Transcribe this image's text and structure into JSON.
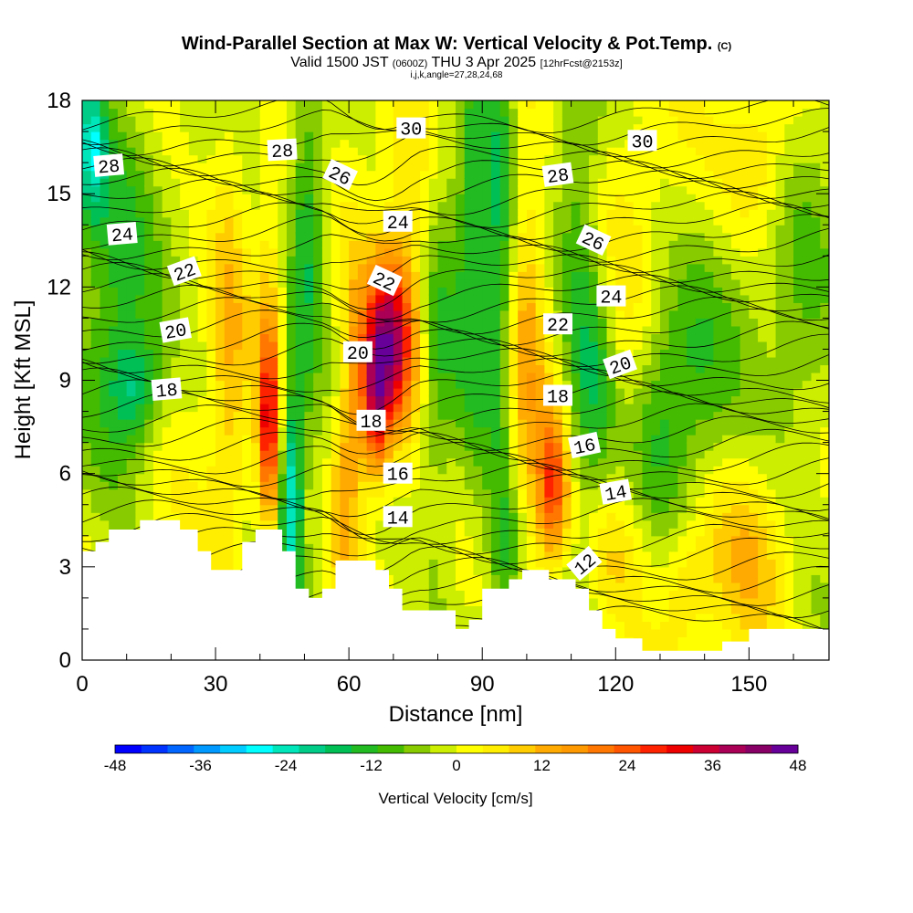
{
  "header": {
    "title": "Wind-Parallel Section at Max W: Vertical Velocity & Pot.Temp.",
    "copyright": "(C)",
    "valid_prefix": "Valid 1500 JST",
    "valid_zulu": "(0600Z)",
    "valid_date": "THU 3 Apr 2025",
    "forecast_tag": "[12hrFcst@2153z]",
    "indices": "i,j,k,angle=27,28,24,68"
  },
  "chart_data": {
    "type": "heatmap",
    "xlabel": "Distance [nm]",
    "ylabel": "Height [Kft MSL]",
    "xlim": [
      0,
      168
    ],
    "ylim": [
      0,
      18
    ],
    "x_ticks": [
      0,
      30,
      60,
      90,
      120,
      150
    ],
    "y_ticks": [
      0,
      3,
      6,
      9,
      12,
      15,
      18
    ],
    "colorbar": {
      "label": "Vertical Velocity [cm/s]",
      "ticks": [
        -48,
        -36,
        -24,
        -12,
        0,
        12,
        24,
        36,
        48
      ],
      "range": [
        -48,
        48
      ],
      "step": 4,
      "colors": [
        "#0000ff",
        "#0033ff",
        "#0066ff",
        "#0099ff",
        "#00ccff",
        "#00ffff",
        "#00e6bb",
        "#00cc88",
        "#00c055",
        "#22bb22",
        "#44bb00",
        "#88cc00",
        "#ccee00",
        "#ffff00",
        "#ffee00",
        "#ffcc00",
        "#ffaa00",
        "#ff9900",
        "#ff7700",
        "#ff5500",
        "#ff2200",
        "#ee0000",
        "#cc0033",
        "#aa0055",
        "#880066",
        "#660099"
      ]
    },
    "updraft_cores": [
      {
        "x": 69,
        "y": 10.2,
        "w": 48
      },
      {
        "x": 42,
        "y": 7.5,
        "w": 36
      },
      {
        "x": 106,
        "y": 5.5,
        "w": 30
      },
      {
        "x": 47,
        "y": 5.2,
        "w": -22
      },
      {
        "x": 12,
        "y": 8.7,
        "w": -18
      },
      {
        "x": 2,
        "y": 16.5,
        "w": -30
      }
    ],
    "terrain": [
      [
        0,
        3.5
      ],
      [
        3,
        3.5
      ],
      [
        3,
        3.8
      ],
      [
        6,
        3.8
      ],
      [
        6,
        4.2
      ],
      [
        13,
        4.2
      ],
      [
        13,
        4.5
      ],
      [
        22,
        4.5
      ],
      [
        22,
        4.2
      ],
      [
        26,
        4.2
      ],
      [
        26,
        3.5
      ],
      [
        29,
        3.5
      ],
      [
        29,
        2.9
      ],
      [
        36,
        2.9
      ],
      [
        36,
        3.8
      ],
      [
        39,
        3.8
      ],
      [
        39,
        4.2
      ],
      [
        45,
        4.2
      ],
      [
        45,
        3.5
      ],
      [
        48,
        3.5
      ],
      [
        48,
        2.3
      ],
      [
        51,
        2.3
      ],
      [
        51,
        2.0
      ],
      [
        54,
        2.0
      ],
      [
        54,
        2.3
      ],
      [
        57,
        2.3
      ],
      [
        57,
        3.2
      ],
      [
        66,
        3.2
      ],
      [
        66,
        2.9
      ],
      [
        69,
        2.9
      ],
      [
        69,
        2.3
      ],
      [
        72,
        2.3
      ],
      [
        72,
        1.6
      ],
      [
        78,
        1.6
      ],
      [
        78,
        1.6
      ],
      [
        84,
        1.6
      ],
      [
        84,
        1.0
      ],
      [
        87,
        1.0
      ],
      [
        87,
        1.3
      ],
      [
        90,
        1.3
      ],
      [
        90,
        2.3
      ],
      [
        96,
        2.3
      ],
      [
        96,
        2.6
      ],
      [
        99,
        2.6
      ],
      [
        99,
        2.9
      ],
      [
        105,
        2.9
      ],
      [
        105,
        2.6
      ],
      [
        111,
        2.6
      ],
      [
        111,
        2.3
      ],
      [
        114,
        2.3
      ],
      [
        114,
        1.6
      ],
      [
        117,
        1.6
      ],
      [
        117,
        1.0
      ],
      [
        120,
        1.0
      ],
      [
        120,
        0.7
      ],
      [
        126,
        0.7
      ],
      [
        126,
        0.3
      ],
      [
        144,
        0.3
      ],
      [
        144,
        0.6
      ],
      [
        150,
        0.6
      ],
      [
        150,
        1.0
      ],
      [
        168,
        1.0
      ]
    ],
    "contour_labels": [
      {
        "text": "28",
        "x": 6,
        "y": 15.9,
        "angle": -5
      },
      {
        "text": "28",
        "x": 45,
        "y": 16.4,
        "angle": -3
      },
      {
        "text": "30",
        "x": 74,
        "y": 17.1,
        "angle": 0
      },
      {
        "text": "30",
        "x": 126,
        "y": 16.7,
        "angle": 0
      },
      {
        "text": "26",
        "x": 58,
        "y": 15.6,
        "angle": 25
      },
      {
        "text": "28",
        "x": 107,
        "y": 15.6,
        "angle": -8
      },
      {
        "text": "24",
        "x": 9,
        "y": 13.7,
        "angle": -5
      },
      {
        "text": "24",
        "x": 71,
        "y": 14.1,
        "angle": 0
      },
      {
        "text": "26",
        "x": 115,
        "y": 13.5,
        "angle": 25
      },
      {
        "text": "22",
        "x": 23,
        "y": 12.5,
        "angle": -20
      },
      {
        "text": "22",
        "x": 68,
        "y": 12.2,
        "angle": 25
      },
      {
        "text": "24",
        "x": 119,
        "y": 11.7,
        "angle": 0
      },
      {
        "text": "22",
        "x": 107,
        "y": 10.8,
        "angle": 0
      },
      {
        "text": "20",
        "x": 21,
        "y": 10.6,
        "angle": -10
      },
      {
        "text": "20",
        "x": 62,
        "y": 9.9,
        "angle": 0
      },
      {
        "text": "20",
        "x": 121,
        "y": 9.5,
        "angle": -20
      },
      {
        "text": "18",
        "x": 19,
        "y": 8.7,
        "angle": -5
      },
      {
        "text": "18",
        "x": 65,
        "y": 7.7,
        "angle": 0
      },
      {
        "text": "18",
        "x": 107,
        "y": 8.5,
        "angle": 0
      },
      {
        "text": "16",
        "x": 71,
        "y": 6.0,
        "angle": 0
      },
      {
        "text": "16",
        "x": 113,
        "y": 6.9,
        "angle": -12
      },
      {
        "text": "14",
        "x": 71,
        "y": 4.6,
        "angle": 0
      },
      {
        "text": "14",
        "x": 120,
        "y": 5.4,
        "angle": -10
      },
      {
        "text": "12",
        "x": 113,
        "y": 3.1,
        "angle": -40
      }
    ]
  }
}
